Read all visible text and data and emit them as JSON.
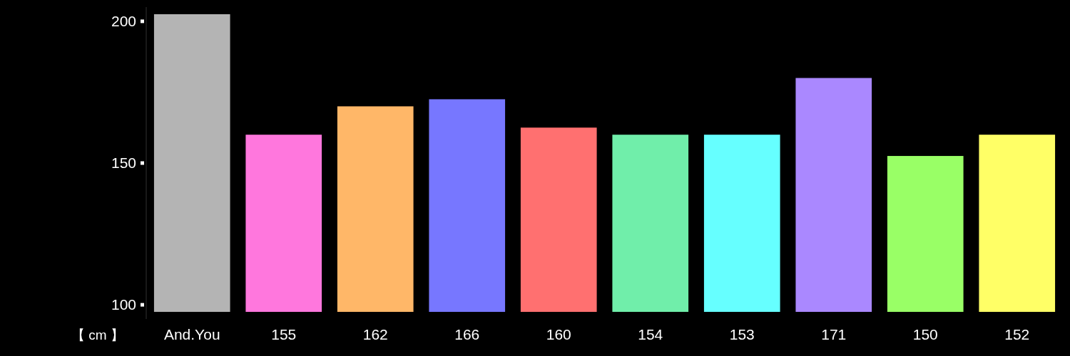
{
  "chart_data": {
    "type": "bar",
    "categories": [
      "And.You",
      "155",
      "162",
      "166",
      "160",
      "154",
      "153",
      "171",
      "150",
      "152"
    ],
    "base": [
      97.5,
      97.5,
      97.5,
      97.5,
      97.5,
      97.5,
      97.5,
      97.5,
      97.5,
      97.5
    ],
    "values": [
      105,
      62.5,
      72.5,
      75,
      65,
      62.5,
      62.5,
      82.5,
      55,
      62.5
    ],
    "colors": [
      "#b4b4b4",
      "#ff77dd",
      "#ffb768",
      "#7777ff",
      "#ff7070",
      "#70eeaa",
      "#66ffff",
      "#aa88ff",
      "#99ff66",
      "#ffff66"
    ],
    "ylim": [
      95,
      205
    ],
    "yticks": [
      100,
      150,
      200
    ],
    "annotations": [
      "【 cm 】"
    ],
    "grid": false
  }
}
